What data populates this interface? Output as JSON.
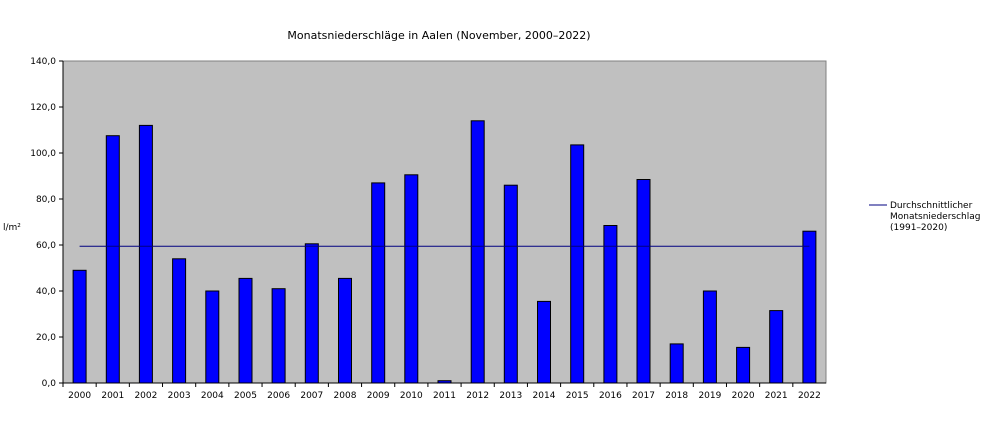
{
  "chart_data": {
    "type": "bar",
    "title": "Monatsniederschläge in Aalen (November, 2000–2022)",
    "ylabel": "l/m²",
    "xlabel": "",
    "ylim": [
      0,
      140
    ],
    "yticks": [
      "0,0",
      "20,0",
      "40,0",
      "60,0",
      "80,0",
      "100,0",
      "120,0",
      "140,0"
    ],
    "categories": [
      "2000",
      "2001",
      "2002",
      "2003",
      "2004",
      "2005",
      "2006",
      "2007",
      "2008",
      "2009",
      "2010",
      "2011",
      "2012",
      "2013",
      "2014",
      "2015",
      "2016",
      "2017",
      "2018",
      "2019",
      "2020",
      "2021",
      "2022"
    ],
    "series": [
      {
        "values": [
          49.0,
          107.5,
          112.0,
          54.0,
          40.0,
          45.5,
          41.0,
          60.5,
          45.5,
          87.0,
          90.5,
          1.0,
          114.0,
          86.0,
          35.5,
          103.5,
          68.5,
          88.5,
          17.0,
          40.0,
          15.5,
          31.5,
          66.0
        ],
        "color": "#0000ff"
      }
    ],
    "reference_line": {
      "value": 59.5,
      "legend": [
        "Durchschnittlicher",
        "Monatsniederschlag",
        "(1991–2020)"
      ],
      "color": "#000080"
    },
    "plot_background": "#c0c0c0",
    "grid": false,
    "legend_position": "right"
  }
}
